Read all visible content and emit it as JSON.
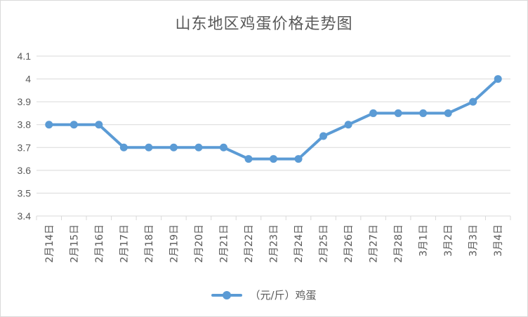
{
  "chart_data": {
    "type": "line",
    "title": "山东地区鸡蛋价格走势图",
    "categories": [
      "2月14日",
      "2月15日",
      "2月16日",
      "2月17日",
      "2月18日",
      "2月19日",
      "2月20日",
      "2月21日",
      "2月22日",
      "2月23日",
      "2月24日",
      "2月25日",
      "2月26日",
      "2月27日",
      "2月28日",
      "3月1日",
      "3月2日",
      "3月3日",
      "3月4日"
    ],
    "series": [
      {
        "name": "（元/斤）鸡蛋",
        "values": [
          3.8,
          3.8,
          3.8,
          3.7,
          3.7,
          3.7,
          3.7,
          3.7,
          3.65,
          3.65,
          3.65,
          3.75,
          3.8,
          3.85,
          3.85,
          3.85,
          3.85,
          3.9,
          4.0
        ]
      }
    ],
    "yticks": [
      "3.4",
      "3.5",
      "3.6",
      "3.7",
      "3.8",
      "3.9",
      "4",
      "4.1"
    ],
    "ylim": [
      3.4,
      4.1
    ],
    "grid": true,
    "legend": "bottom",
    "colors": {
      "series": "#5b9bd5",
      "grid": "#d9d9d9",
      "text": "#595959"
    }
  }
}
